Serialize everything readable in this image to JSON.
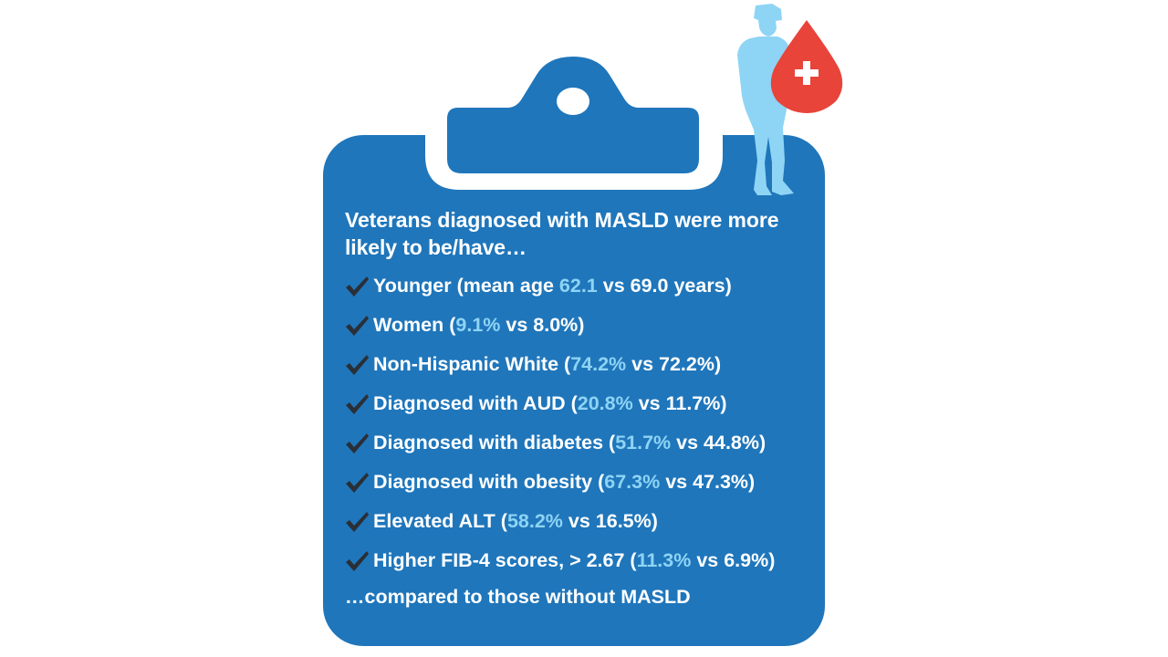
{
  "colors": {
    "clipboard": "#1f76bb",
    "clip_hole": "#ffffff",
    "text": "#ffffff",
    "highlight": "#8ed4f5",
    "checkmark": "#2a2f36",
    "soldier": "#8ed4f5",
    "blood_drop": "#e8443a"
  },
  "icons": {
    "soldier": "soldier-silhouette-icon",
    "blood_drop": "blood-drop-plus-icon",
    "check": "check-icon",
    "clipboard": "clipboard-icon"
  },
  "heading": "Veterans diagnosed with MASLD were more likely to be/have…",
  "items": [
    {
      "prefix": "Younger (mean age ",
      "value": "62.1",
      "suffix": " vs 69.0 years)"
    },
    {
      "prefix": "Women (",
      "value": "9.1%",
      "suffix": " vs 8.0%)"
    },
    {
      "prefix": "Non-Hispanic White (",
      "value": "74.2%",
      "suffix": " vs 72.2%)"
    },
    {
      "prefix": "Diagnosed with AUD (",
      "value": "20.8%",
      "suffix": " vs 11.7%)"
    },
    {
      "prefix": "Diagnosed with diabetes (",
      "value": "51.7%",
      "suffix": " vs 44.8%)"
    },
    {
      "prefix": "Diagnosed with obesity (",
      "value": "67.3%",
      "suffix": " vs 47.3%)"
    },
    {
      "prefix": "Elevated ALT (",
      "value": "58.2%",
      "suffix": " vs 16.5%)"
    },
    {
      "prefix": "Higher FIB-4 scores, > 2.67 (",
      "value": "11.3%",
      "suffix": " vs 6.9%)"
    }
  ],
  "footer": "…compared to those without MASLD"
}
